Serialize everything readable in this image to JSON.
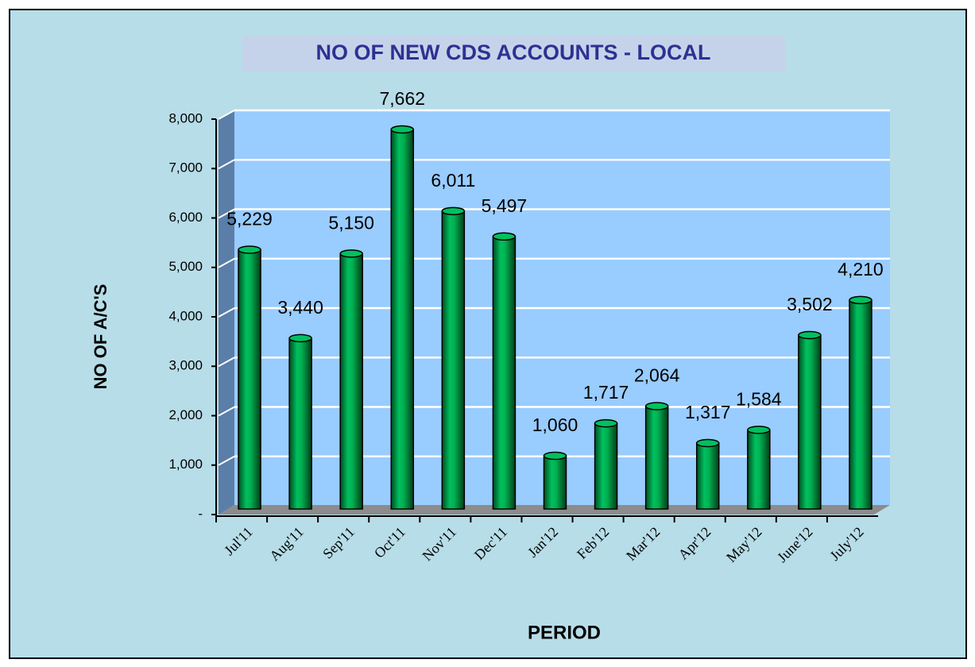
{
  "chart_data": {
    "type": "bar",
    "title": "NO OF NEW CDS ACCOUNTS - LOCAL",
    "x_label": "PERIOD",
    "y_label": "NO OF A/C'S",
    "categories": [
      "Jul'11",
      "Aug'11",
      "Sep'11",
      "Oct'11",
      "Nov'11",
      "Dec'11",
      "Jan'12",
      "Feb'12",
      "Mar'12",
      "Apr'12",
      "May'12",
      "June'12",
      "July'12"
    ],
    "values": [
      5229,
      3440,
      5150,
      7662,
      6011,
      5497,
      1060,
      1717,
      2064,
      1317,
      1584,
      3502,
      4210
    ],
    "value_labels": [
      "5,229",
      "3,440",
      "5,150",
      "7,662",
      "6,011",
      "5,497",
      "1,060",
      "1,717",
      "2,064",
      "1,317",
      "1,584",
      "3,502",
      "4,210"
    ],
    "color": "#00b050",
    "ylim": [
      0,
      8000
    ],
    "yticks": [
      {
        "value": 0,
        "label": "-"
      },
      {
        "value": 1000,
        "label": "1,000"
      },
      {
        "value": 2000,
        "label": "2,000"
      },
      {
        "value": 3000,
        "label": "3,000"
      },
      {
        "value": 4000,
        "label": "4,000"
      },
      {
        "value": 5000,
        "label": "5,000"
      },
      {
        "value": 6000,
        "label": "6,000"
      },
      {
        "value": 7000,
        "label": "7,000"
      },
      {
        "value": 8000,
        "label": "8,000"
      }
    ],
    "grid": true
  }
}
